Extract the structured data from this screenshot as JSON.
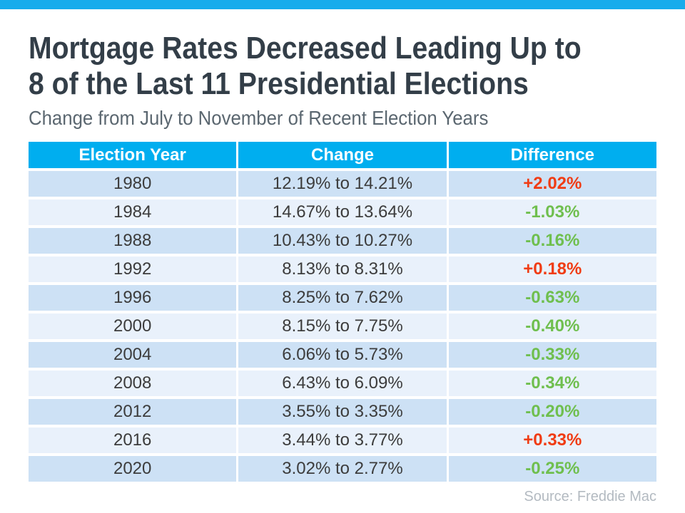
{
  "page": {
    "title_line1": "Mortgage Rates Decreased Leading Up to",
    "title_line2": "8 of the Last 11 Presidential Elections",
    "subtitle": "Change from July to November of Recent Election Years",
    "source": "Source: Freddie Mac"
  },
  "colors": {
    "top_bar": "#18ACEC",
    "header_bg": "#00AEEF",
    "row_dark": "#CDE1F5",
    "row_light": "#E9F1FB",
    "increase": "#F03C14",
    "decrease": "#6FBF4E",
    "title_text": "#333E48",
    "subtitle_text": "#5B6770",
    "source_text": "#B3BAC1"
  },
  "table": {
    "headers": [
      "Election Year",
      "Change",
      "Difference"
    ],
    "rows": [
      {
        "year": "1980",
        "change": "12.19% to 14.21%",
        "difference": "+2.02%"
      },
      {
        "year": "1984",
        "change": "14.67% to 13.64%",
        "difference": "-1.03%"
      },
      {
        "year": "1988",
        "change": "10.43% to 10.27%",
        "difference": "-0.16%"
      },
      {
        "year": "1992",
        "change": "8.13% to 8.31%",
        "difference": "+0.18%"
      },
      {
        "year": "1996",
        "change": "8.25% to 7.62%",
        "difference": "-0.63%"
      },
      {
        "year": "2000",
        "change": "8.15% to 7.75%",
        "difference": "-0.40%"
      },
      {
        "year": "2004",
        "change": "6.06% to 5.73%",
        "difference": "-0.33%"
      },
      {
        "year": "2008",
        "change": "6.43% to 6.09%",
        "difference": "-0.34%"
      },
      {
        "year": "2012",
        "change": "3.55% to 3.35%",
        "difference": "-0.20%"
      },
      {
        "year": "2016",
        "change": "3.44% to 3.77%",
        "difference": "+0.33%"
      },
      {
        "year": "2020",
        "change": "3.02% to 2.77%",
        "difference": "-0.25%"
      }
    ]
  },
  "chart_data": {
    "type": "table",
    "title": "Mortgage Rates Decreased Leading Up to 8 of the Last 11 Presidential Elections",
    "subtitle": "Change from July to November of Recent Election Years",
    "columns": [
      "Election Year",
      "Change",
      "Difference"
    ],
    "rows": [
      [
        "1980",
        "12.19% to 14.21%",
        "+2.02%"
      ],
      [
        "1984",
        "14.67% to 13.64%",
        "-1.03%"
      ],
      [
        "1988",
        "10.43% to 10.27%",
        "-0.16%"
      ],
      [
        "1992",
        "8.13% to 8.31%",
        "+0.18%"
      ],
      [
        "1996",
        "8.25% to 7.62%",
        "-0.63%"
      ],
      [
        "2000",
        "8.15% to 7.75%",
        "-0.40%"
      ],
      [
        "2004",
        "6.06% to 5.73%",
        "-0.33%"
      ],
      [
        "2008",
        "6.43% to 6.09%",
        "-0.34%"
      ],
      [
        "2012",
        "3.55% to 3.35%",
        "-0.20%"
      ],
      [
        "2016",
        "3.44% to 3.77%",
        "+0.33%"
      ],
      [
        "2020",
        "3.02% to 2.77%",
        "-0.25%"
      ]
    ],
    "source": "Source: Freddie Mac"
  }
}
